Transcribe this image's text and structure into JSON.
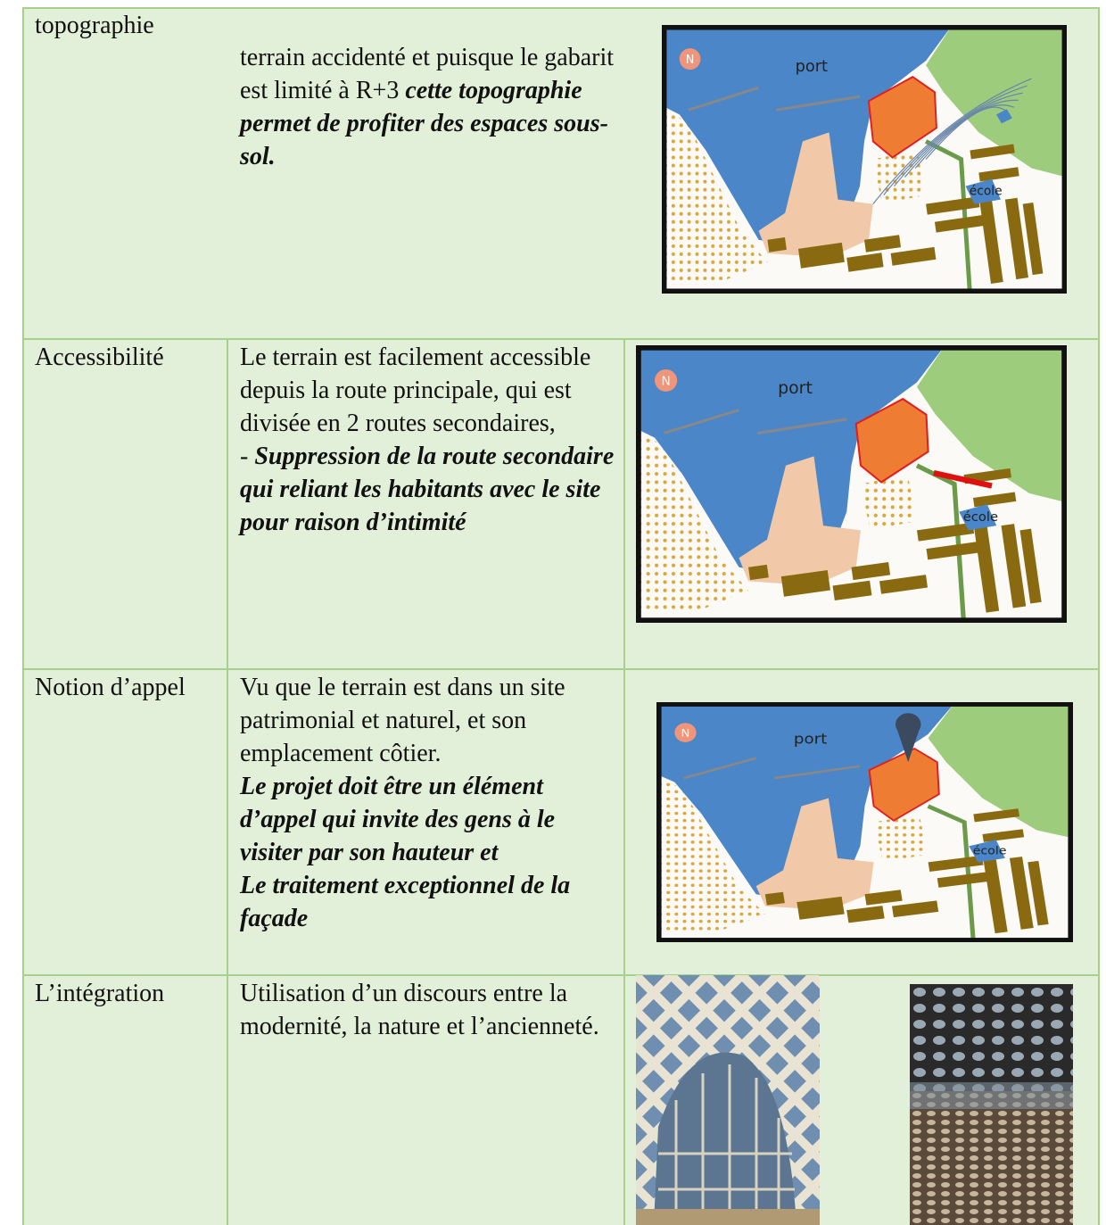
{
  "rows": [
    {
      "label": "topographie",
      "paragraphs": [
        [
          {
            "plain": "terrain accidenté et puisque le gabarit est limité à R+3 "
          },
          {
            "emphasis": "cette topographie permet de profiter des espaces sous-sol."
          }
        ]
      ],
      "map": {
        "north": "N",
        "port": "port",
        "school": "école"
      }
    },
    {
      "label": "Accessibilité",
      "paragraphs": [
        [
          {
            "plain": "Le terrain est facilement accessible depuis la route principale, qui est divisée en 2 routes secondaires,"
          }
        ],
        [
          {
            "plain": "- "
          },
          {
            "emphasis": "Suppression de la route secondaire qui reliant les habitants avec le site pour raison d’intimité"
          }
        ]
      ],
      "map": {
        "north": "N",
        "port": "port",
        "school": "école"
      }
    },
    {
      "label": "Notion d’appel",
      "paragraphs": [
        [
          {
            "plain": "Vu que le terrain est dans un site patrimonial et naturel, et son emplacement côtier."
          }
        ],
        [
          {
            "emphasis": "Le projet doit être un élément d’appel qui invite des gens à le visiter par son hauteur et"
          }
        ],
        [
          {
            "emphasis": " Le traitement exceptionnel de la façade"
          }
        ]
      ],
      "map": {
        "north": "N",
        "port": "port",
        "school": "école"
      }
    },
    {
      "label": "L’intégration",
      "paragraphs": [
        [
          {
            "plain": "Utilisation d’un discours entre la modernité, la nature et l’ancienneté."
          }
        ]
      ]
    }
  ]
}
